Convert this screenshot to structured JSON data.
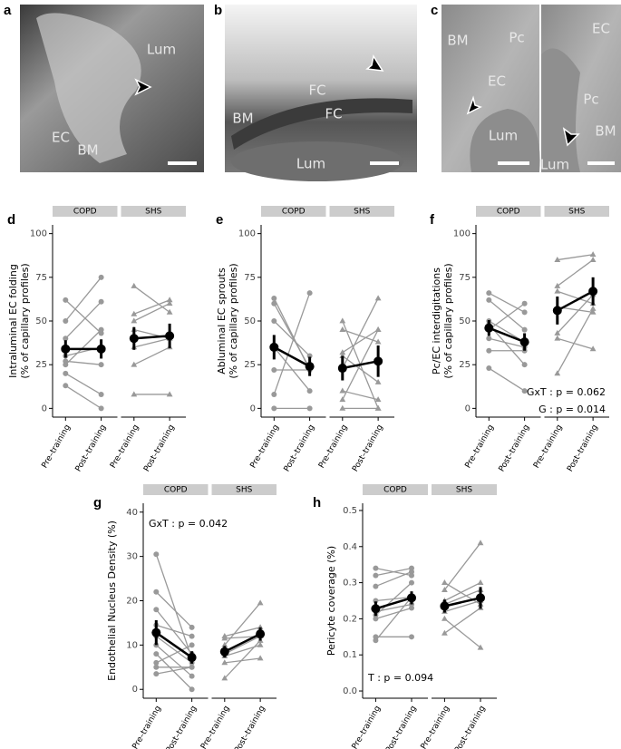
{
  "images": [
    {
      "letter": "a",
      "labels": [
        "Lum",
        "EC",
        "BM"
      ]
    },
    {
      "letter": "b",
      "labels": [
        "FC",
        "FC",
        "BM",
        "Lum"
      ]
    },
    {
      "letter": "c",
      "labels": [
        "BM",
        "Pc",
        "EC",
        "Lum",
        "EC",
        "Pc",
        "BM",
        "Lum"
      ]
    }
  ],
  "chart_data": [
    {
      "type": "paired",
      "letter": "d",
      "ylabel": [
        "Intraluminal EC folding",
        "(% of capillary profiles)"
      ],
      "categories": [
        "Pre–training",
        "Post–training"
      ],
      "ylim": [
        -5,
        105
      ],
      "yticks": [
        0,
        25,
        50,
        75,
        100
      ],
      "subject_color": "#999999",
      "mean_color": "#000000",
      "strip_color": "#cccccc",
      "panels": [
        {
          "name": "COPD",
          "marker": "circle",
          "subjects": [
            [
              62,
              43
            ],
            [
              50,
              75
            ],
            [
              40,
              61
            ],
            [
              30,
              35
            ],
            [
              27,
              25
            ],
            [
              25,
              45
            ],
            [
              20,
              8
            ],
            [
              13,
              0
            ]
          ],
          "mean": {
            "values": [
              34,
              34
            ],
            "errors": [
              5,
              5.5
            ]
          }
        },
        {
          "name": "SHS",
          "marker": "triangle",
          "subjects": [
            [
              70,
              55
            ],
            [
              54,
              62
            ],
            [
              50,
              60
            ],
            [
              45,
              40
            ],
            [
              35,
              40
            ],
            [
              25,
              35
            ],
            [
              8,
              8
            ]
          ],
          "mean": {
            "values": [
              40,
              41.5
            ],
            "errors": [
              6.5,
              7
            ]
          }
        }
      ],
      "annotations": []
    },
    {
      "type": "paired",
      "letter": "e",
      "ylabel": [
        "Abluminal EC sprouts",
        "(% of capillary profiles)"
      ],
      "categories": [
        "Pre–training",
        "Post–training"
      ],
      "ylim": [
        -5,
        105
      ],
      "yticks": [
        0,
        25,
        50,
        75,
        100
      ],
      "subject_color": "#999999",
      "mean_color": "#000000",
      "strip_color": "#cccccc",
      "panels": [
        {
          "name": "COPD",
          "marker": "circle",
          "subjects": [
            [
              63,
              22
            ],
            [
              60,
              23
            ],
            [
              50,
              30
            ],
            [
              35,
              10
            ],
            [
              22,
              22
            ],
            [
              8,
              66
            ],
            [
              0,
              0
            ]
          ],
          "mean": {
            "values": [
              35,
              24
            ],
            "errors": [
              7,
              5.5
            ]
          }
        },
        {
          "name": "SHS",
          "marker": "triangle",
          "subjects": [
            [
              50,
              0
            ],
            [
              45,
              38
            ],
            [
              32,
              45
            ],
            [
              30,
              15
            ],
            [
              23,
              63
            ],
            [
              10,
              5
            ],
            [
              5,
              45
            ],
            [
              0,
              0
            ]
          ],
          "mean": {
            "values": [
              23,
              27
            ],
            "errors": [
              7,
              9
            ]
          }
        }
      ],
      "annotations": []
    },
    {
      "type": "paired",
      "letter": "f",
      "ylabel": [
        "Pc/EC interdigitations",
        "(% of capillary profiles)"
      ],
      "categories": [
        "Pre–training",
        "Post–training"
      ],
      "ylim": [
        -5,
        105
      ],
      "yticks": [
        0,
        25,
        50,
        75,
        100
      ],
      "subject_color": "#999999",
      "mean_color": "#000000",
      "strip_color": "#cccccc",
      "panels": [
        {
          "name": "COPD",
          "marker": "circle",
          "subjects": [
            [
              66,
              55
            ],
            [
              62,
              45
            ],
            [
              50,
              38
            ],
            [
              45,
              60
            ],
            [
              40,
              35
            ],
            [
              33,
              33
            ],
            [
              23,
              10
            ],
            [
              48,
              25
            ]
          ],
          "mean": {
            "values": [
              46,
              38
            ],
            "errors": [
              4.5,
              5
            ]
          }
        },
        {
          "name": "SHS",
          "marker": "triangle",
          "subjects": [
            [
              85,
              88
            ],
            [
              70,
              85
            ],
            [
              67,
              60
            ],
            [
              58,
              55
            ],
            [
              43,
              65
            ],
            [
              40,
              34
            ],
            [
              20,
              57
            ]
          ],
          "mean": {
            "values": [
              56,
              67
            ],
            "errors": [
              8,
              8
            ]
          }
        }
      ],
      "annotations": [
        "GxT : p = 0.062",
        "G : p = 0.014"
      ]
    },
    {
      "type": "paired",
      "letter": "g",
      "ylabel": [
        "Endothelial Nucleus Density (%)"
      ],
      "categories": [
        "Pre–training",
        "Post–training"
      ],
      "ylim": [
        -2,
        42
      ],
      "yticks": [
        0,
        10,
        20,
        30,
        40
      ],
      "subject_color": "#999999",
      "mean_color": "#000000",
      "strip_color": "#cccccc",
      "panels": [
        {
          "name": "COPD",
          "marker": "circle",
          "subjects": [
            [
              30.5,
              7
            ],
            [
              22,
              14
            ],
            [
              18,
              8
            ],
            [
              14.5,
              12
            ],
            [
              12,
              6
            ],
            [
              10,
              3
            ],
            [
              8,
              0
            ],
            [
              6,
              10
            ],
            [
              5,
              5
            ],
            [
              3.5,
              5
            ]
          ],
          "mean": {
            "values": [
              12.8,
              7.2
            ],
            "errors": [
              2.8,
              1.4
            ]
          }
        },
        {
          "name": "SHS",
          "marker": "triangle",
          "subjects": [
            [
              12,
              14
            ],
            [
              11.5,
              12
            ],
            [
              10,
              19.5
            ],
            [
              8,
              12
            ],
            [
              7.5,
              10
            ],
            [
              6,
              7
            ],
            [
              2.5,
              11
            ]
          ],
          "mean": {
            "values": [
              8.5,
              12.5
            ],
            "errors": [
              1.3,
              1.5
            ]
          }
        }
      ],
      "annotations": [
        "GxT : p = 0.042"
      ]
    },
    {
      "type": "paired",
      "letter": "h",
      "ylabel": [
        "Pericyte coverage (%)"
      ],
      "categories": [
        "Pre–training",
        "Post–training"
      ],
      "ylim": [
        -0.02,
        0.52
      ],
      "yticks": [
        {
          "value": 0,
          "label": "0.0"
        },
        0.1,
        0.2,
        0.3,
        0.4,
        0.5
      ],
      "subject_color": "#999999",
      "mean_color": "#000000",
      "strip_color": "#cccccc",
      "panels": [
        {
          "name": "COPD",
          "marker": "circle",
          "subjects": [
            [
              0.34,
              0.32
            ],
            [
              0.32,
              0.34
            ],
            [
              0.29,
              0.33
            ],
            [
              0.25,
              0.26
            ],
            [
              0.22,
              0.24
            ],
            [
              0.21,
              0.3
            ],
            [
              0.2,
              0.23
            ],
            [
              0.15,
              0.15
            ],
            [
              0.14,
              0.26
            ]
          ],
          "mean": {
            "values": [
              0.228,
              0.258
            ],
            "errors": [
              0.02,
              0.018
            ]
          }
        },
        {
          "name": "SHS",
          "marker": "triangle",
          "subjects": [
            [
              0.3,
              0.24
            ],
            [
              0.28,
              0.41
            ],
            [
              0.25,
              0.3
            ],
            [
              0.24,
              0.28
            ],
            [
              0.22,
              0.25
            ],
            [
              0.16,
              0.23
            ],
            [
              0.2,
              0.12
            ]
          ],
          "mean": {
            "values": [
              0.235,
              0.258
            ],
            "errors": [
              0.018,
              0.03
            ]
          }
        }
      ],
      "annotations": [
        "T : p = 0.094"
      ]
    }
  ]
}
